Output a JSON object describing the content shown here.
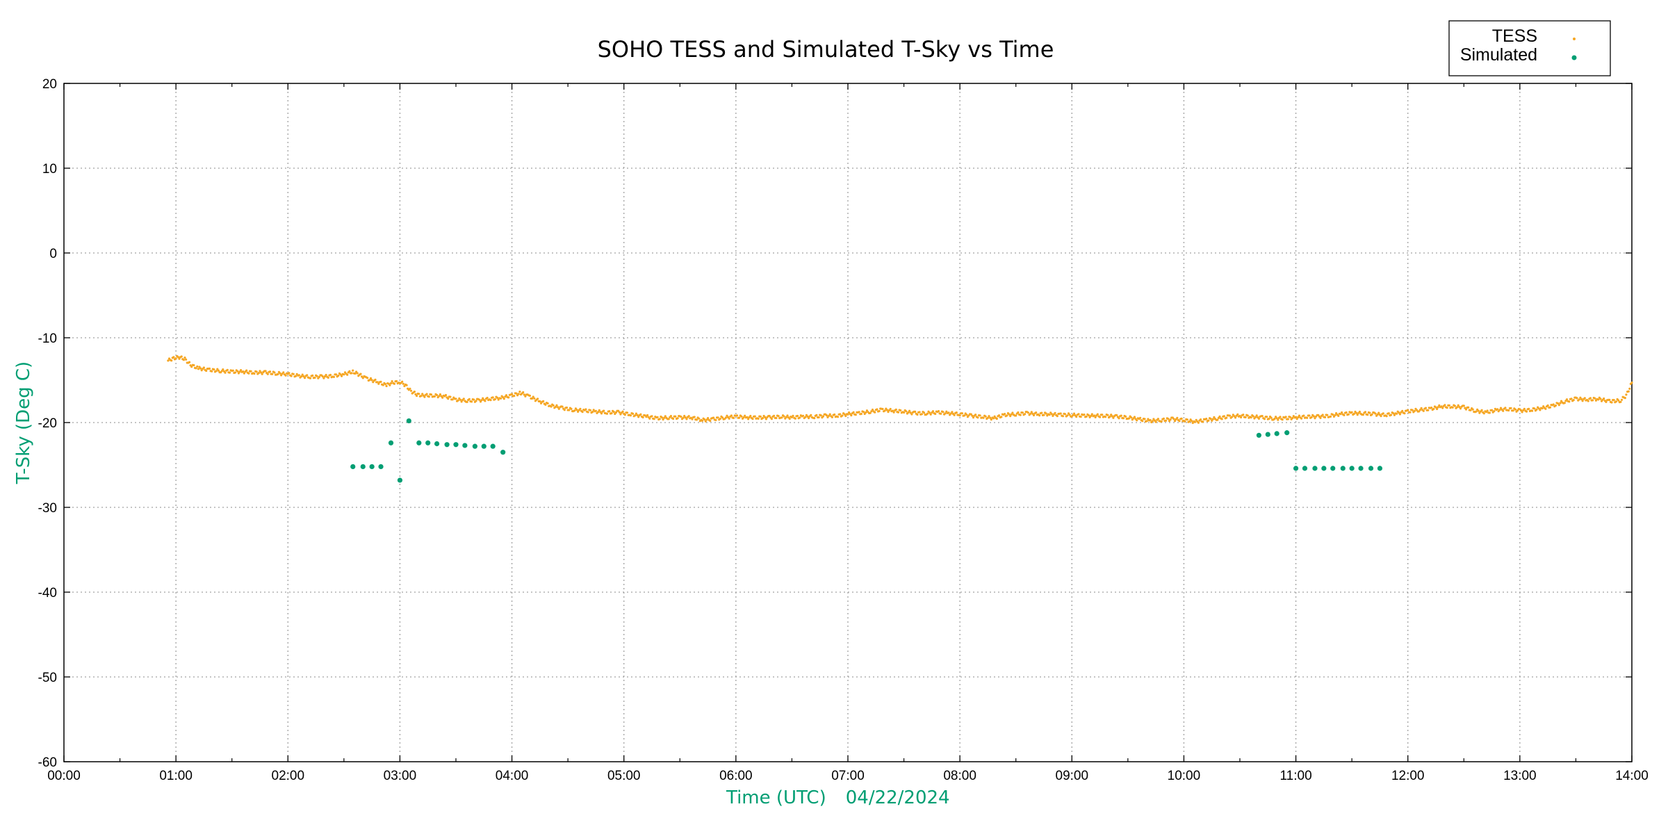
{
  "chart_data": {
    "type": "scatter",
    "title": "SOHO TESS and Simulated T-Sky vs Time",
    "xlabel": "Time (UTC)",
    "xlabel_date": "04/22/2024",
    "ylabel": "T-Sky (Deg C)",
    "xlim": [
      0,
      14
    ],
    "ylim": [
      -60,
      20
    ],
    "xticks": [
      {
        "v": 0,
        "label": "00:00"
      },
      {
        "v": 1,
        "label": "01:00"
      },
      {
        "v": 2,
        "label": "02:00"
      },
      {
        "v": 3,
        "label": "03:00"
      },
      {
        "v": 4,
        "label": "04:00"
      },
      {
        "v": 5,
        "label": "05:00"
      },
      {
        "v": 6,
        "label": "06:00"
      },
      {
        "v": 7,
        "label": "07:00"
      },
      {
        "v": 8,
        "label": "08:00"
      },
      {
        "v": 9,
        "label": "09:00"
      },
      {
        "v": 10,
        "label": "10:00"
      },
      {
        "v": 11,
        "label": "11:00"
      },
      {
        "v": 12,
        "label": "12:00"
      },
      {
        "v": 13,
        "label": "13:00"
      },
      {
        "v": 14,
        "label": "14:00"
      }
    ],
    "yticks": [
      {
        "v": 20,
        "label": "20"
      },
      {
        "v": 10,
        "label": "10"
      },
      {
        "v": 0,
        "label": "0"
      },
      {
        "v": -10,
        "label": "-10"
      },
      {
        "v": -20,
        "label": "-20"
      },
      {
        "v": -30,
        "label": "-30"
      },
      {
        "v": -40,
        "label": "-40"
      },
      {
        "v": -50,
        "label": "-50"
      },
      {
        "v": -60,
        "label": "-60"
      }
    ],
    "grid": true,
    "legend_position": "top-right",
    "colors": {
      "tess": "#f5a623",
      "simulated": "#009e73",
      "axis_label": "#009e73"
    },
    "series": [
      {
        "name": "TESS",
        "marker": "small-dot",
        "points": [
          [
            0.93,
            -12.7
          ],
          [
            0.98,
            -12.4
          ],
          [
            1.03,
            -12.3
          ],
          [
            1.08,
            -12.5
          ],
          [
            1.13,
            -13.2
          ],
          [
            1.2,
            -13.6
          ],
          [
            1.3,
            -13.8
          ],
          [
            1.4,
            -13.9
          ],
          [
            1.5,
            -14.0
          ],
          [
            1.6,
            -14.0
          ],
          [
            1.7,
            -14.1
          ],
          [
            1.8,
            -14.1
          ],
          [
            1.9,
            -14.2
          ],
          [
            2.0,
            -14.3
          ],
          [
            2.1,
            -14.5
          ],
          [
            2.2,
            -14.6
          ],
          [
            2.3,
            -14.6
          ],
          [
            2.4,
            -14.5
          ],
          [
            2.5,
            -14.3
          ],
          [
            2.58,
            -14.0
          ],
          [
            2.63,
            -14.3
          ],
          [
            2.7,
            -14.8
          ],
          [
            2.8,
            -15.2
          ],
          [
            2.88,
            -15.6
          ],
          [
            2.93,
            -15.3
          ],
          [
            3.0,
            -15.2
          ],
          [
            3.05,
            -15.6
          ],
          [
            3.1,
            -16.3
          ],
          [
            3.15,
            -16.7
          ],
          [
            3.2,
            -16.8
          ],
          [
            3.3,
            -16.8
          ],
          [
            3.4,
            -16.9
          ],
          [
            3.5,
            -17.3
          ],
          [
            3.6,
            -17.4
          ],
          [
            3.7,
            -17.4
          ],
          [
            3.8,
            -17.2
          ],
          [
            3.9,
            -17.1
          ],
          [
            4.0,
            -16.8
          ],
          [
            4.08,
            -16.5
          ],
          [
            4.15,
            -16.9
          ],
          [
            4.25,
            -17.5
          ],
          [
            4.35,
            -18.0
          ],
          [
            4.45,
            -18.3
          ],
          [
            4.55,
            -18.5
          ],
          [
            4.65,
            -18.6
          ],
          [
            4.75,
            -18.7
          ],
          [
            4.85,
            -18.8
          ],
          [
            4.95,
            -18.8
          ],
          [
            5.05,
            -19.0
          ],
          [
            5.2,
            -19.3
          ],
          [
            5.3,
            -19.5
          ],
          [
            5.4,
            -19.4
          ],
          [
            5.5,
            -19.4
          ],
          [
            5.6,
            -19.4
          ],
          [
            5.7,
            -19.7
          ],
          [
            5.8,
            -19.6
          ],
          [
            5.9,
            -19.4
          ],
          [
            6.0,
            -19.3
          ],
          [
            6.1,
            -19.4
          ],
          [
            6.2,
            -19.4
          ],
          [
            6.3,
            -19.4
          ],
          [
            6.4,
            -19.3
          ],
          [
            6.5,
            -19.4
          ],
          [
            6.6,
            -19.3
          ],
          [
            6.7,
            -19.3
          ],
          [
            6.8,
            -19.2
          ],
          [
            6.9,
            -19.2
          ],
          [
            7.0,
            -19.0
          ],
          [
            7.1,
            -18.9
          ],
          [
            7.2,
            -18.7
          ],
          [
            7.3,
            -18.5
          ],
          [
            7.4,
            -18.6
          ],
          [
            7.5,
            -18.7
          ],
          [
            7.6,
            -18.9
          ],
          [
            7.7,
            -18.9
          ],
          [
            7.8,
            -18.8
          ],
          [
            7.9,
            -18.9
          ],
          [
            8.0,
            -19.0
          ],
          [
            8.1,
            -19.2
          ],
          [
            8.2,
            -19.3
          ],
          [
            8.3,
            -19.5
          ],
          [
            8.4,
            -19.1
          ],
          [
            8.5,
            -19.0
          ],
          [
            8.6,
            -18.9
          ],
          [
            8.7,
            -19.0
          ],
          [
            8.8,
            -19.0
          ],
          [
            8.9,
            -19.1
          ],
          [
            9.0,
            -19.1
          ],
          [
            9.1,
            -19.2
          ],
          [
            9.2,
            -19.2
          ],
          [
            9.3,
            -19.2
          ],
          [
            9.4,
            -19.3
          ],
          [
            9.5,
            -19.4
          ],
          [
            9.6,
            -19.6
          ],
          [
            9.7,
            -19.8
          ],
          [
            9.8,
            -19.7
          ],
          [
            9.9,
            -19.6
          ],
          [
            10.0,
            -19.7
          ],
          [
            10.1,
            -19.9
          ],
          [
            10.2,
            -19.7
          ],
          [
            10.3,
            -19.5
          ],
          [
            10.4,
            -19.3
          ],
          [
            10.5,
            -19.2
          ],
          [
            10.6,
            -19.3
          ],
          [
            10.7,
            -19.4
          ],
          [
            10.8,
            -19.5
          ],
          [
            10.9,
            -19.5
          ],
          [
            11.0,
            -19.4
          ],
          [
            11.1,
            -19.3
          ],
          [
            11.2,
            -19.3
          ],
          [
            11.3,
            -19.2
          ],
          [
            11.4,
            -19.0
          ],
          [
            11.5,
            -18.9
          ],
          [
            11.6,
            -18.9
          ],
          [
            11.7,
            -19.0
          ],
          [
            11.8,
            -19.1
          ],
          [
            11.9,
            -18.9
          ],
          [
            12.0,
            -18.7
          ],
          [
            12.1,
            -18.5
          ],
          [
            12.2,
            -18.4
          ],
          [
            12.3,
            -18.1
          ],
          [
            12.4,
            -18.1
          ],
          [
            12.5,
            -18.2
          ],
          [
            12.6,
            -18.6
          ],
          [
            12.7,
            -18.8
          ],
          [
            12.8,
            -18.5
          ],
          [
            12.9,
            -18.4
          ],
          [
            13.0,
            -18.6
          ],
          [
            13.1,
            -18.5
          ],
          [
            13.2,
            -18.3
          ],
          [
            13.3,
            -18.0
          ],
          [
            13.4,
            -17.5
          ],
          [
            13.5,
            -17.2
          ],
          [
            13.6,
            -17.3
          ],
          [
            13.7,
            -17.2
          ],
          [
            13.8,
            -17.5
          ],
          [
            13.9,
            -17.4
          ],
          [
            13.95,
            -16.8
          ],
          [
            14.0,
            -15.3
          ]
        ]
      },
      {
        "name": "Simulated",
        "marker": "dot",
        "points": [
          [
            2.58,
            -25.2
          ],
          [
            2.67,
            -25.2
          ],
          [
            2.75,
            -25.2
          ],
          [
            2.83,
            -25.2
          ],
          [
            2.92,
            -22.4
          ],
          [
            3.0,
            -26.8
          ],
          [
            3.08,
            -19.8
          ],
          [
            3.17,
            -22.4
          ],
          [
            3.25,
            -22.4
          ],
          [
            3.33,
            -22.5
          ],
          [
            3.42,
            -22.6
          ],
          [
            3.5,
            -22.6
          ],
          [
            3.58,
            -22.7
          ],
          [
            3.67,
            -22.8
          ],
          [
            3.75,
            -22.8
          ],
          [
            3.83,
            -22.8
          ],
          [
            3.92,
            -23.5
          ],
          [
            10.67,
            -21.5
          ],
          [
            10.75,
            -21.4
          ],
          [
            10.83,
            -21.3
          ],
          [
            10.92,
            -21.2
          ],
          [
            11.0,
            -25.4
          ],
          [
            11.08,
            -25.4
          ],
          [
            11.17,
            -25.4
          ],
          [
            11.25,
            -25.4
          ],
          [
            11.33,
            -25.4
          ],
          [
            11.42,
            -25.4
          ],
          [
            11.5,
            -25.4
          ],
          [
            11.58,
            -25.4
          ],
          [
            11.67,
            -25.4
          ],
          [
            11.75,
            -25.4
          ]
        ]
      }
    ]
  }
}
